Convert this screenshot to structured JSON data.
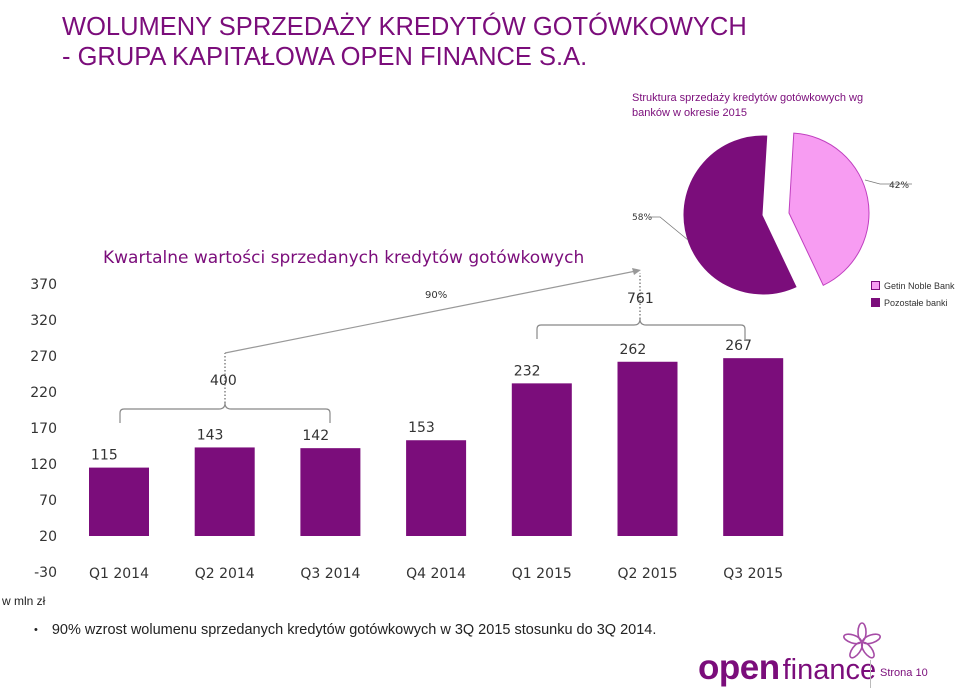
{
  "title_lines": [
    "WOLUMENY SPRZEDAŻY KREDYTÓW GOTÓWKOWYCH",
    "- GRUPA KAPITAŁOWA OPEN FINANCE S.A."
  ],
  "unit_label": "w mln zł",
  "bullet": {
    "symbol": "•",
    "text": "90% wzrost wolumenu sprzedanych kredytów gotówkowych w 3Q 2015 stosunku do 3Q 2014."
  },
  "logo": {
    "part1": "open",
    "part2": "finance",
    "icon": "flower-logo-icon"
  },
  "page_number": "Strona 10",
  "colors": {
    "accent": "#7b0d7b",
    "pie_light": "#f79cf2",
    "pie_light_border": "#c040c0"
  },
  "chart_data": [
    {
      "type": "bar",
      "title": "Kwartalne wartości sprzedanych kredytów gotówkowych",
      "categories": [
        "Q1 2014",
        "Q2 2014",
        "Q3 2014",
        "Q4 2014",
        "Q1 2015",
        "Q2 2015",
        "Q3 2015"
      ],
      "values": [
        115,
        143,
        142,
        153,
        232,
        262,
        267
      ],
      "value_labels": [
        "115",
        "143",
        "142",
        "153",
        "232",
        "262",
        "267"
      ],
      "y_ticks": [
        370,
        320,
        270,
        220,
        170,
        120,
        70,
        20,
        -30
      ],
      "ylim": [
        -30,
        370
      ],
      "grid": false,
      "annotations": {
        "sum_2014_q1_q3": "400",
        "sum_2015_q1_q3": "761",
        "growth": "90%"
      }
    },
    {
      "type": "pie",
      "title": "Struktura sprzedaży kredytów gotówkowych wg banków w okresie 2015",
      "slices": [
        {
          "name": "Getin Noble Bank",
          "value": 42,
          "label": "42%",
          "color": "#f79cf2"
        },
        {
          "name": "Pozostałe banki",
          "value": 58,
          "label": "58%",
          "color": "#7b0d7b"
        }
      ],
      "legend_position": "right"
    }
  ]
}
